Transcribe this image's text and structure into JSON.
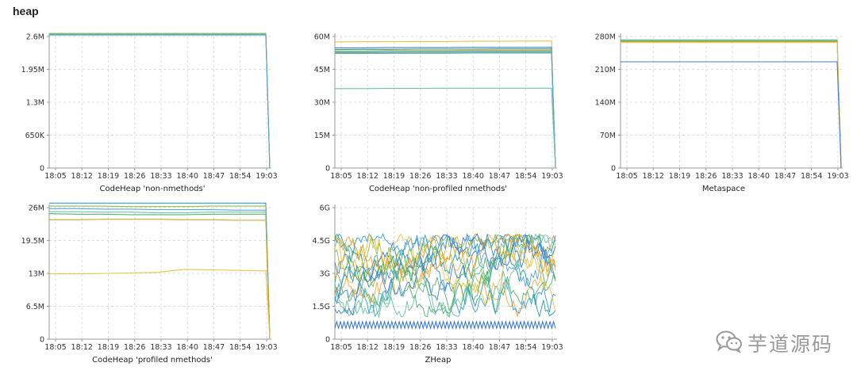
{
  "page": {
    "title": "heap"
  },
  "watermark": {
    "text": "芋道源码",
    "icon": "wechat-icon"
  },
  "time_labels": [
    "18:05",
    "18:12",
    "18:19",
    "18:26",
    "18:33",
    "18:40",
    "18:47",
    "18:54",
    "19:03"
  ],
  "colors": [
    "#f2a93b",
    "#e8c547",
    "#6cc4a4",
    "#2ea0d6",
    "#3f7fd8",
    "#52b36b",
    "#8fbf3c",
    "#1fa38f",
    "#c9a227",
    "#5aa5e0"
  ],
  "chart_data": [
    {
      "type": "line",
      "title": "CodeHeap 'non-nmethods'",
      "y_ticks": [
        "0",
        "650K",
        "1.3M",
        "1.95M",
        "2.6M"
      ],
      "ylim": [
        0,
        2.6
      ],
      "y_unit": "M",
      "series": [
        {
          "values": [
            2.65,
            2.65,
            2.65,
            2.65,
            2.65,
            2.65,
            2.65,
            2.65,
            2.65,
            0
          ]
        },
        {
          "values": [
            2.63,
            2.63,
            2.63,
            2.63,
            2.63,
            2.63,
            2.63,
            2.63,
            2.63,
            0
          ]
        },
        {
          "values": [
            2.66,
            2.66,
            2.66,
            2.66,
            2.66,
            2.66,
            2.66,
            2.66,
            2.66,
            0
          ]
        },
        {
          "values": [
            2.64,
            2.64,
            2.64,
            2.64,
            2.64,
            2.64,
            2.64,
            2.64,
            2.64,
            0
          ]
        }
      ]
    },
    {
      "type": "line",
      "title": "CodeHeap 'non-profiled nmethods'",
      "y_ticks": [
        "0",
        "15M",
        "30M",
        "45M",
        "60M"
      ],
      "ylim": [
        0,
        60
      ],
      "y_unit": "M",
      "series": [
        {
          "values": [
            57.5,
            57.6,
            57.6,
            57.7,
            57.7,
            57.8,
            57.8,
            57.9,
            57.9,
            0
          ]
        },
        {
          "values": [
            54.8,
            54.8,
            54.9,
            54.9,
            54.9,
            55.0,
            55.0,
            55.0,
            55.0,
            0
          ]
        },
        {
          "values": [
            54.0,
            54.1,
            54.1,
            54.2,
            54.2,
            54.2,
            54.3,
            54.3,
            54.3,
            0
          ]
        },
        {
          "values": [
            53.5,
            53.5,
            53.6,
            53.6,
            53.6,
            53.7,
            53.7,
            53.7,
            53.7,
            0
          ]
        },
        {
          "values": [
            53.0,
            53.0,
            53.1,
            53.1,
            53.1,
            53.2,
            53.2,
            53.2,
            53.2,
            0
          ]
        },
        {
          "values": [
            52.6,
            52.6,
            52.6,
            52.7,
            52.7,
            52.7,
            52.8,
            52.8,
            52.8,
            0
          ]
        },
        {
          "values": [
            52.2,
            52.2,
            52.3,
            52.3,
            52.3,
            52.4,
            52.4,
            52.4,
            52.4,
            0
          ]
        },
        {
          "values": [
            36.2,
            36.2,
            36.3,
            36.3,
            36.4,
            36.4,
            36.4,
            36.4,
            36.4,
            0
          ]
        }
      ]
    },
    {
      "type": "line",
      "title": "Metaspace",
      "y_ticks": [
        "0",
        "70M",
        "140M",
        "210M",
        "280M"
      ],
      "ylim": [
        0,
        280
      ],
      "y_unit": "M",
      "series": [
        {
          "values": [
            273,
            273,
            273,
            273,
            273,
            273,
            273,
            273,
            273,
            0
          ]
        },
        {
          "values": [
            271,
            271,
            271,
            271,
            271,
            271,
            271,
            271,
            271,
            0
          ]
        },
        {
          "values": [
            269,
            269,
            269,
            269,
            269,
            269,
            269,
            269,
            269,
            0
          ]
        },
        {
          "values": [
            267,
            267,
            267,
            267,
            267,
            267,
            267,
            267,
            267,
            0
          ]
        },
        {
          "values": [
            226,
            226,
            226,
            226,
            226,
            226,
            226,
            226,
            226,
            0
          ]
        }
      ]
    },
    {
      "type": "line",
      "title": "CodeHeap 'profiled nmethods'",
      "y_ticks": [
        "0",
        "6.5M",
        "13M",
        "19.5M",
        "26M"
      ],
      "ylim": [
        0,
        26
      ],
      "y_unit": "M",
      "series": [
        {
          "values": [
            26.9,
            26.9,
            26.9,
            26.9,
            26.9,
            26.9,
            26.9,
            26.9,
            26.9,
            0
          ]
        },
        {
          "values": [
            26.3,
            26.3,
            26.3,
            26.2,
            26.2,
            26.2,
            26.3,
            26.3,
            26.3,
            0
          ]
        },
        {
          "values": [
            25.8,
            25.8,
            25.7,
            25.7,
            25.6,
            25.6,
            25.6,
            25.5,
            25.5,
            0
          ]
        },
        {
          "values": [
            25.2,
            25.2,
            25.1,
            25.1,
            25.0,
            25.0,
            25.1,
            25.1,
            25.1,
            0
          ]
        },
        {
          "values": [
            24.8,
            24.7,
            24.7,
            24.6,
            24.6,
            24.6,
            24.7,
            24.7,
            24.7,
            0
          ]
        },
        {
          "values": [
            23.6,
            23.6,
            23.7,
            23.7,
            23.7,
            23.6,
            23.6,
            23.5,
            23.5,
            0
          ]
        },
        {
          "values": [
            12.9,
            12.9,
            13.0,
            13.1,
            13.2,
            13.8,
            13.7,
            13.6,
            13.5,
            0
          ]
        }
      ]
    },
    {
      "type": "line",
      "title": "ZHeap",
      "y_ticks": [
        "0",
        "1.5G",
        "3G",
        "4.5G",
        "6G"
      ],
      "ylim": [
        0,
        6
      ],
      "y_unit": "G",
      "series_count": 16,
      "value_range": [
        0.5,
        4.8
      ],
      "baseline_band": [
        0.5,
        0.8
      ]
    }
  ]
}
